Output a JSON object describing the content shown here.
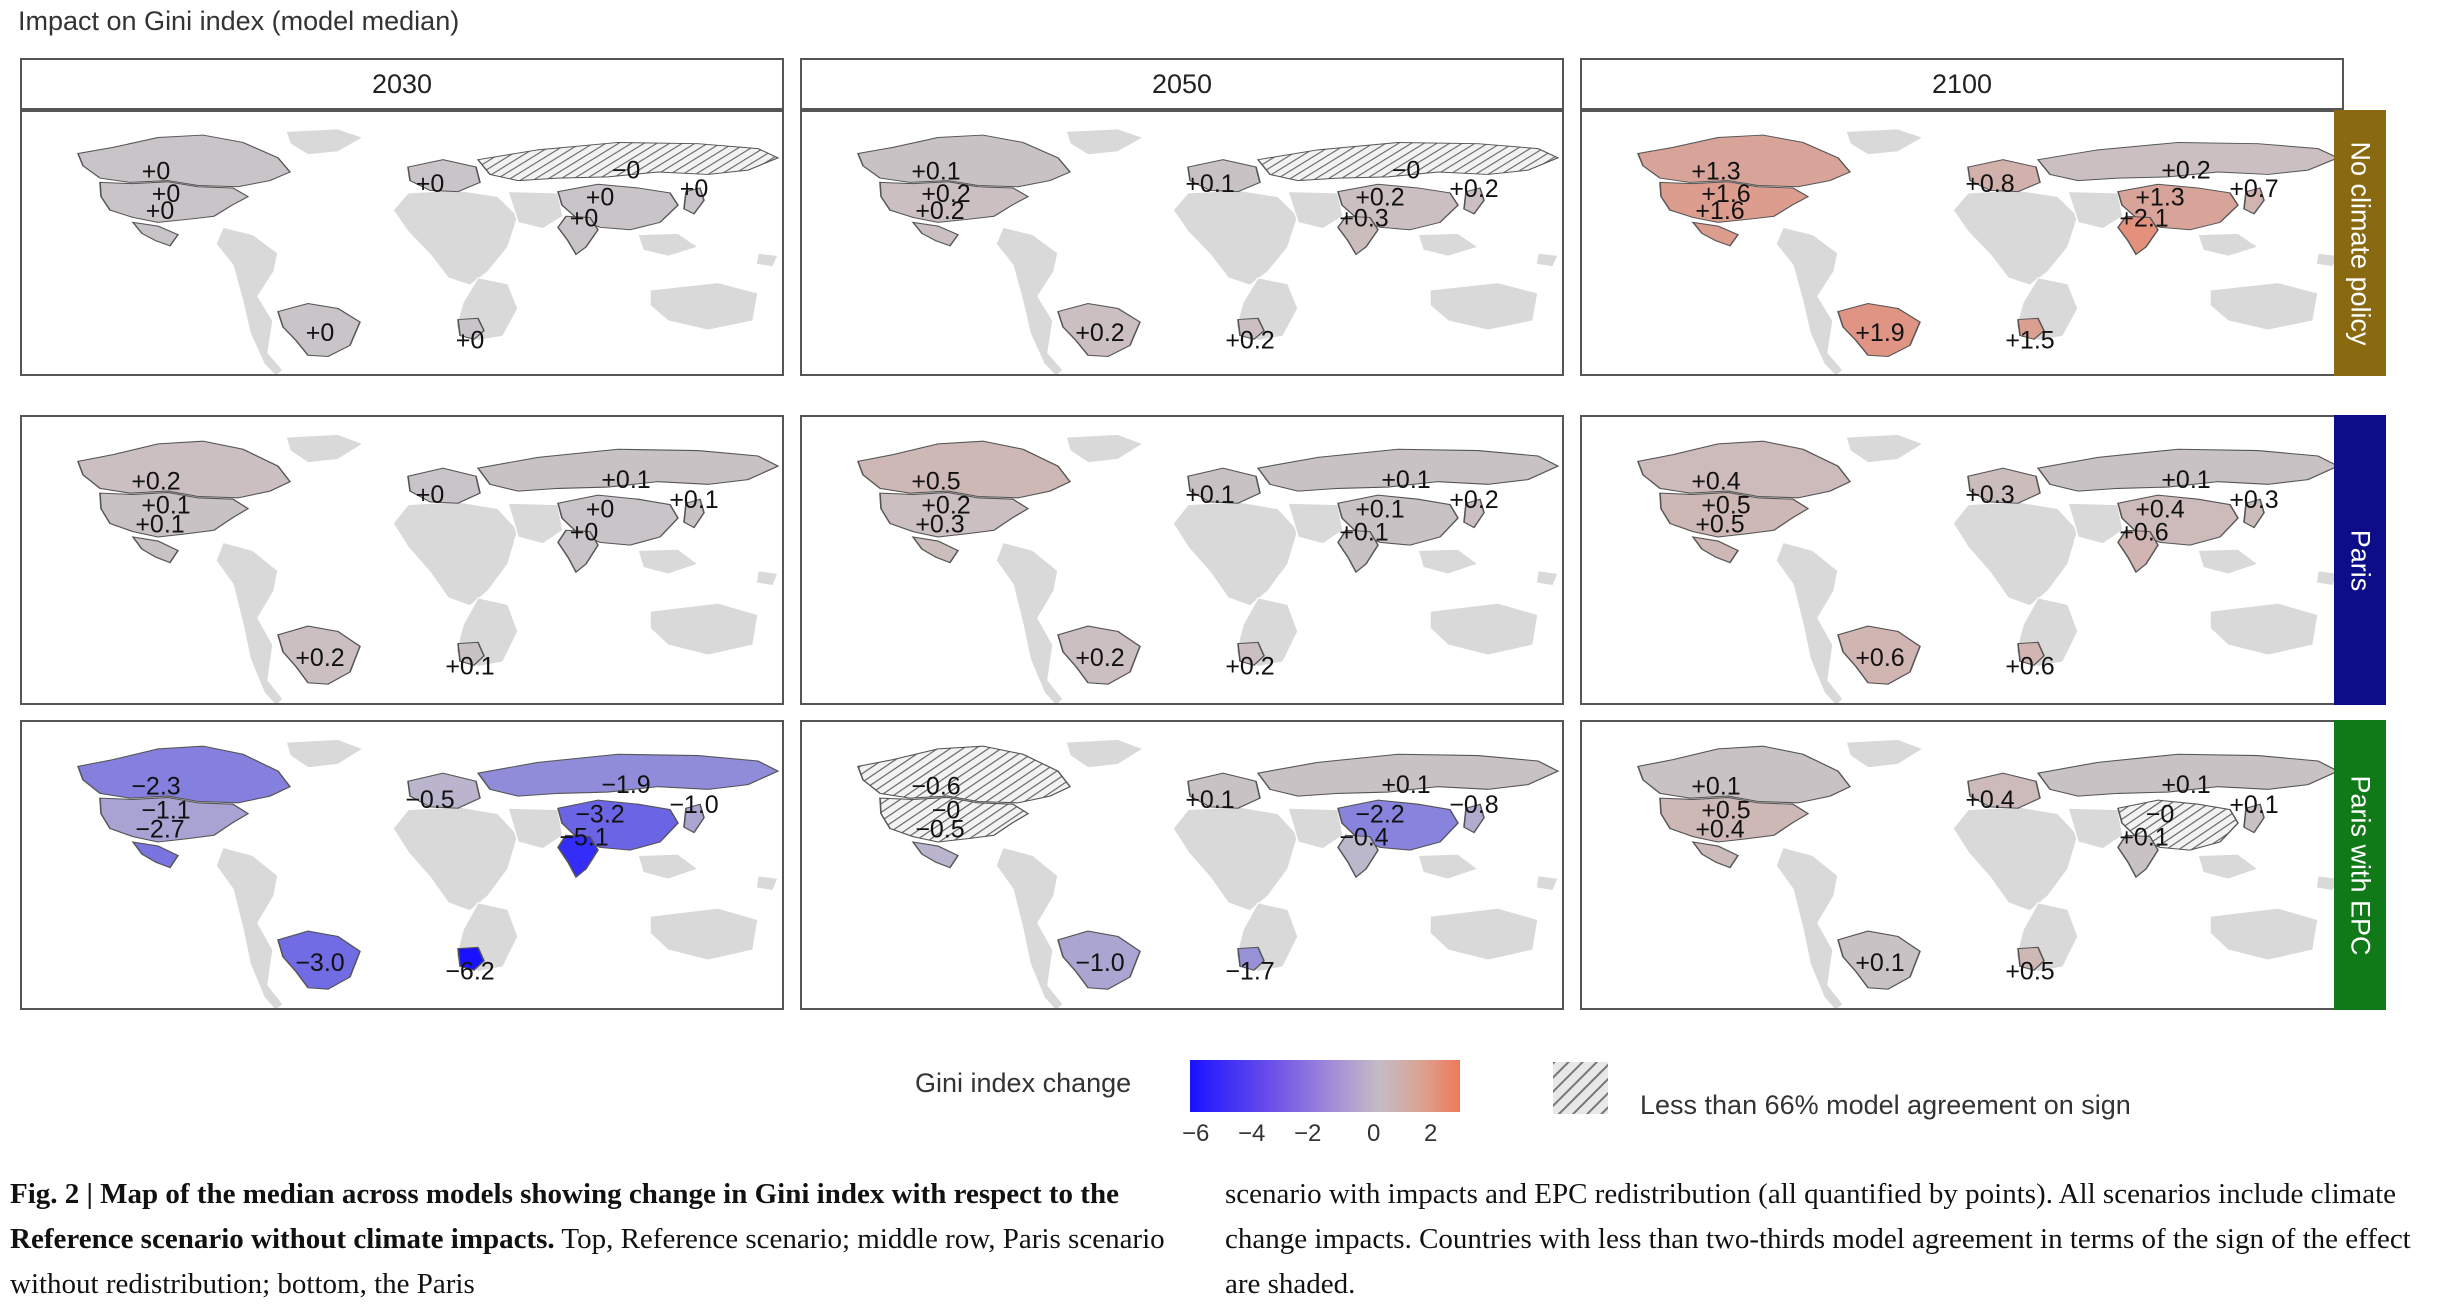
{
  "chart_data": {
    "type": "choropleth-map-grid",
    "title": "Impact on Gini index (model median)",
    "columns": [
      "2030",
      "2050",
      "2100"
    ],
    "rows": [
      {
        "label": "No climate policy",
        "color": "#8a6a10"
      },
      {
        "label": "Paris",
        "color": "#0d0d8a"
      },
      {
        "label": "Paris with EPC",
        "color": "#117a18"
      }
    ],
    "regions": [
      "Canada",
      "USA",
      "Mexico",
      "Brazil",
      "Europe",
      "Russia",
      "China",
      "Japan",
      "India",
      "Sub-Saharan Africa"
    ],
    "panels": [
      {
        "row": "No climate policy",
        "year": "2030",
        "values": {
          "Canada": "+0",
          "USA": "+0",
          "Mexico": "+0",
          "Brazil": "+0",
          "Europe": "+0",
          "Russia": "−0",
          "China": "+0",
          "Japan": "+0",
          "India": "+0",
          "Sub-Saharan Africa": "+0"
        },
        "hatched": [
          "Russia"
        ]
      },
      {
        "row": "No climate policy",
        "year": "2050",
        "values": {
          "Canada": "+0.1",
          "USA": "+0.2",
          "Mexico": "+0.2",
          "Brazil": "+0.2",
          "Europe": "+0.1",
          "Russia": "−0",
          "China": "+0.2",
          "Japan": "+0.2",
          "India": "+0.3",
          "Sub-Saharan Africa": "+0.2"
        },
        "hatched": [
          "Russia"
        ]
      },
      {
        "row": "No climate policy",
        "year": "2100",
        "values": {
          "Canada": "+1.3",
          "USA": "+1.6",
          "Mexico": "+1.6",
          "Brazil": "+1.9",
          "Europe": "+0.8",
          "Russia": "+0.2",
          "China": "+1.3",
          "Japan": "+0.7",
          "India": "+2.1",
          "Sub-Saharan Africa": "+1.5"
        },
        "hatched": []
      },
      {
        "row": "Paris",
        "year": "2030",
        "values": {
          "Canada": "+0.2",
          "USA": "+0.1",
          "Mexico": "+0.1",
          "Brazil": "+0.2",
          "Europe": "+0",
          "Russia": "+0.1",
          "China": "+0",
          "Japan": "+0.1",
          "India": "+0",
          "Sub-Saharan Africa": "+0.1"
        },
        "hatched": []
      },
      {
        "row": "Paris",
        "year": "2050",
        "values": {
          "Canada": "+0.5",
          "USA": "+0.2",
          "Mexico": "+0.3",
          "Brazil": "+0.2",
          "Europe": "+0.1",
          "Russia": "+0.1",
          "China": "+0.1",
          "Japan": "+0.2",
          "India": "+0.1",
          "Sub-Saharan Africa": "+0.2"
        },
        "hatched": []
      },
      {
        "row": "Paris",
        "year": "2100",
        "values": {
          "Canada": "+0.4",
          "USA": "+0.5",
          "Mexico": "+0.5",
          "Brazil": "+0.6",
          "Europe": "+0.3",
          "Russia": "+0.1",
          "China": "+0.4",
          "Japan": "+0.3",
          "India": "+0.6",
          "Sub-Saharan Africa": "+0.6"
        },
        "hatched": []
      },
      {
        "row": "Paris with EPC",
        "year": "2030",
        "values": {
          "Canada": "−2.3",
          "USA": "−1.1",
          "Mexico": "−2.7",
          "Brazil": "−3.0",
          "Europe": "−0.5",
          "Russia": "−1.9",
          "China": "−3.2",
          "Japan": "−1.0",
          "India": "−5.1",
          "Sub-Saharan Africa": "−6.2"
        },
        "hatched": []
      },
      {
        "row": "Paris with EPC",
        "year": "2050",
        "values": {
          "Canada": "−0.6",
          "USA": "−0",
          "Mexico": "−0.5",
          "Brazil": "−1.0",
          "Europe": "+0.1",
          "Russia": "+0.1",
          "China": "−2.2",
          "Japan": "−0.8",
          "India": "−0.4",
          "Sub-Saharan Africa": "−1.7"
        },
        "hatched": [
          "Canada",
          "USA"
        ]
      },
      {
        "row": "Paris with EPC",
        "year": "2100",
        "values": {
          "Canada": "+0.1",
          "USA": "+0.5",
          "Mexico": "+0.4",
          "Brazil": "+0.1",
          "Europe": "+0.4",
          "Russia": "+0.1",
          "China": "−0",
          "Japan": "+0.1",
          "India": "+0.1",
          "Sub-Saharan Africa": "+0.5"
        },
        "hatched": [
          "China"
        ]
      }
    ],
    "legend": {
      "title": "Gini index change",
      "ticks": [
        "−6",
        "−4",
        "−2",
        "0",
        "2"
      ],
      "range": [
        -6,
        3
      ],
      "colors": {
        "low": "#1a12ff",
        "mid": "#c8c4c8",
        "high": "#ee7a5c"
      },
      "hatch_label": "Less than 66% model agreement on sign"
    }
  },
  "caption": {
    "title": "Fig. 2 | Map of the median across models showing change in Gini index with respect to the Reference scenario without climate impacts.",
    "text1": " Top, Reference scenario; middle row, Paris scenario without redistribution; bottom, the Paris",
    "text2": "scenario with impacts and EPC redistribution (all quantified by points). All scenarios include climate change impacts. Countries with less than two-thirds model agreement in terms of the sign of the effect are shaded."
  }
}
